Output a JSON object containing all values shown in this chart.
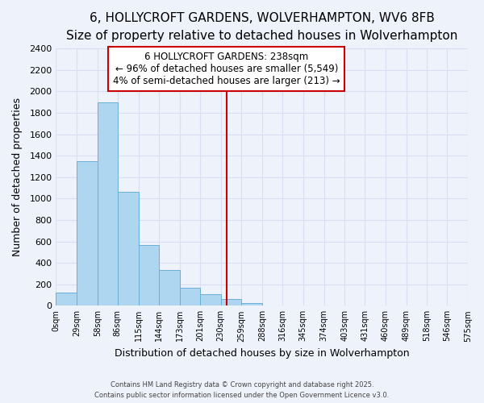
{
  "title": "6, HOLLYCROFT GARDENS, WOLVERHAMPTON, WV6 8FB",
  "subtitle": "Size of property relative to detached houses in Wolverhampton",
  "xlabel": "Distribution of detached houses by size in Wolverhampton",
  "ylabel": "Number of detached properties",
  "bin_labels": [
    "0sqm",
    "29sqm",
    "58sqm",
    "86sqm",
    "115sqm",
    "144sqm",
    "173sqm",
    "201sqm",
    "230sqm",
    "259sqm",
    "288sqm",
    "316sqm",
    "345sqm",
    "374sqm",
    "403sqm",
    "431sqm",
    "460sqm",
    "489sqm",
    "518sqm",
    "546sqm",
    "575sqm"
  ],
  "bar_values": [
    125,
    1350,
    1900,
    1060,
    565,
    335,
    170,
    105,
    60,
    25,
    0,
    0,
    0,
    0,
    0,
    0,
    0,
    0,
    0,
    0
  ],
  "bin_edges": [
    0,
    29,
    58,
    86,
    115,
    144,
    173,
    201,
    230,
    259,
    288,
    316,
    345,
    374,
    403,
    431,
    460,
    489,
    518,
    546,
    575
  ],
  "bar_color": "#aed6f0",
  "bar_edge_color": "#6aafd6",
  "property_size": 238,
  "vline_color": "#cc0000",
  "annotation_text": "6 HOLLYCROFT GARDENS: 238sqm\n← 96% of detached houses are smaller (5,549)\n4% of semi-detached houses are larger (213) →",
  "annotation_box_color": "#ffffff",
  "annotation_box_edge": "#cc0000",
  "ylim": [
    0,
    2400
  ],
  "yticks": [
    0,
    200,
    400,
    600,
    800,
    1000,
    1200,
    1400,
    1600,
    1800,
    2000,
    2200,
    2400
  ],
  "footer1": "Contains HM Land Registry data © Crown copyright and database right 2025.",
  "footer2": "Contains public sector information licensed under the Open Government Licence v3.0.",
  "bg_color": "#eef2fb",
  "grid_color": "#d8dff0",
  "title_fontsize": 11,
  "subtitle_fontsize": 9.5,
  "annotation_fontsize": 8.5
}
